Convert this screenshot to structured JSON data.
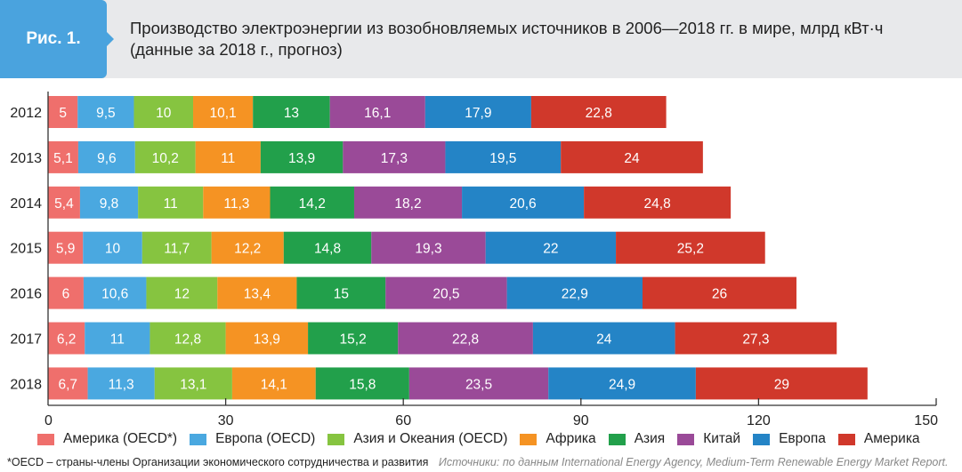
{
  "header": {
    "figure_label": "Рис. 1.",
    "title_line1": "Производство электроэнергии из возобновляемых источников в 2006—2018 гг. в мире, млрд кВт·ч",
    "title_line2": "(данные за 2018 г., прогноз)"
  },
  "chart_data": {
    "type": "bar",
    "orientation": "horizontal",
    "stacked": true,
    "title": "Производство электроэнергии из возобновляемых источников в 2006—2018 гг. в мире, млрд кВт·ч (данные за 2018 г., прогноз)",
    "xlabel": "",
    "ylabel": "",
    "xlim": [
      0,
      150
    ],
    "xticks": [
      0,
      30,
      60,
      90,
      120,
      150
    ],
    "grid": false,
    "legend_position": "bottom",
    "categories": [
      "2012",
      "2013",
      "2014",
      "2015",
      "2016",
      "2017",
      "2018"
    ],
    "series": [
      {
        "name": "Америка (OECD*)",
        "color": "#ef6f6c",
        "values": [
          5,
          5.1,
          5.4,
          5.9,
          6,
          6.2,
          6.7
        ],
        "labels": [
          "5",
          "5,1",
          "5,4",
          "5,9",
          "6",
          "6,2",
          "6,7"
        ]
      },
      {
        "name": "Европа (OECD)",
        "color": "#4aa8e0",
        "values": [
          9.5,
          9.6,
          9.8,
          10,
          10.6,
          11,
          11.3
        ],
        "labels": [
          "9,5",
          "9,6",
          "9,8",
          "10",
          "10,6",
          "11",
          "11,3"
        ]
      },
      {
        "name": "Азия и Океания (OECD)",
        "color": "#86c440",
        "values": [
          10,
          10.2,
          11,
          11.7,
          12,
          12.8,
          13.1
        ],
        "labels": [
          "10",
          "10,2",
          "11",
          "11,7",
          "12",
          "12,8",
          "13,1"
        ]
      },
      {
        "name": "Африка",
        "color": "#f59323",
        "values": [
          10.1,
          11,
          11.3,
          12.2,
          13.4,
          13.9,
          14.1
        ],
        "labels": [
          "10,1",
          "11",
          "11,3",
          "12,2",
          "13,4",
          "13,9",
          "14,1"
        ]
      },
      {
        "name": "Азия",
        "color": "#22a04b",
        "values": [
          13,
          13.9,
          14.2,
          14.8,
          15,
          15.2,
          15.8
        ],
        "labels": [
          "13",
          "13,9",
          "14,2",
          "14,8",
          "15",
          "15,2",
          "15,8"
        ]
      },
      {
        "name": "Китай",
        "color": "#9a4a98",
        "values": [
          16.1,
          17.3,
          18.2,
          19.3,
          20.5,
          22.8,
          23.5
        ],
        "labels": [
          "16,1",
          "17,3",
          "18,2",
          "19,3",
          "20,5",
          "22,8",
          "23,5"
        ]
      },
      {
        "name": "Европа",
        "color": "#2484c6",
        "values": [
          17.9,
          19.5,
          20.6,
          22,
          22.9,
          24,
          24.9
        ],
        "labels": [
          "17,9",
          "19,5",
          "20,6",
          "22",
          "22,9",
          "24",
          "24,9"
        ]
      },
      {
        "name": "Америка",
        "color": "#d0382b",
        "values": [
          22.8,
          24,
          24.8,
          25.2,
          26,
          27.3,
          29
        ],
        "labels": [
          "22,8",
          "24",
          "24,8",
          "25,2",
          "26",
          "27,3",
          "29"
        ]
      }
    ]
  },
  "footnote": {
    "note": "*OECD – страны-члены Организации экономического сотрудничества и развития",
    "source": "Источники: по данным International Energy Agency, Medium-Term Renewable Energy Market Report."
  }
}
